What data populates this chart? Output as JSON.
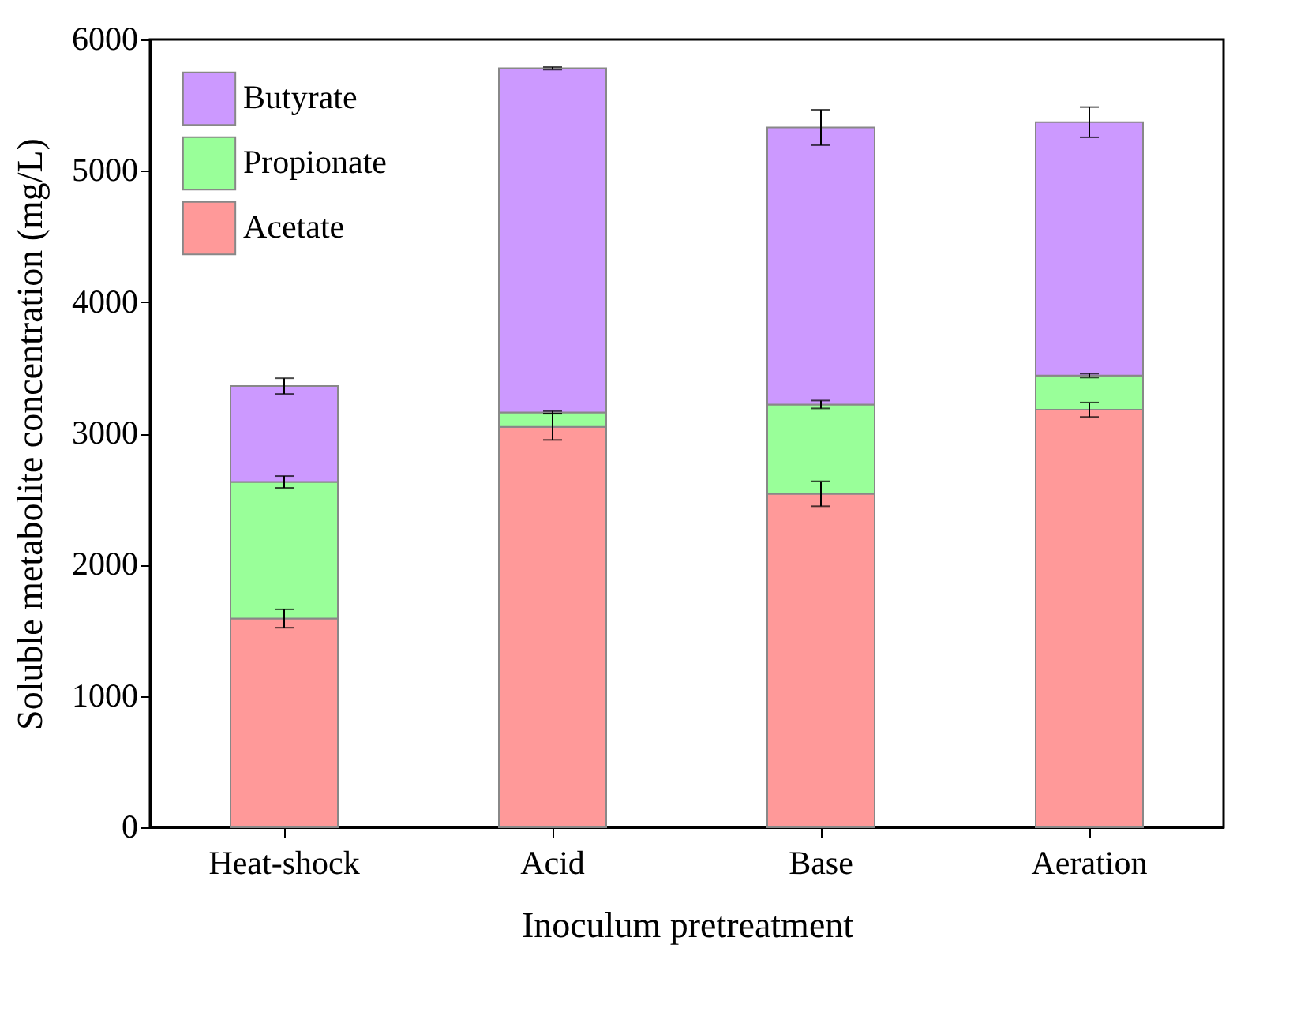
{
  "chart_data": {
    "type": "bar",
    "stacked": true,
    "xlabel": "Inoculum pretreatment",
    "ylabel": "Soluble metabolite concentration (mg/L)",
    "categories": [
      "Heat-shock",
      "Acid",
      "Base",
      "Aeration"
    ],
    "ylim": [
      0,
      6000
    ],
    "yticks": [
      0,
      1000,
      2000,
      3000,
      4000,
      5000,
      6000
    ],
    "legend": "top left",
    "series": [
      {
        "name": "Acetate",
        "color": "#ff9999",
        "values": [
          1590,
          3050,
          2540,
          3180
        ],
        "errors": [
          70,
          100,
          95,
          55
        ]
      },
      {
        "name": "Propionate",
        "color": "#99ff99",
        "values": [
          1040,
          110,
          680,
          260
        ],
        "errors": [
          45,
          10,
          30,
          15
        ]
      },
      {
        "name": "Butyrate",
        "color": "#cc99ff",
        "values": [
          730,
          2620,
          2110,
          1930
        ],
        "errors": [
          60,
          10,
          135,
          115
        ]
      }
    ]
  }
}
